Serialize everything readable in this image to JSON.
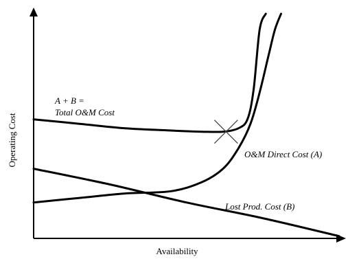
{
  "chart_data": {
    "type": "line",
    "title": "",
    "xlabel": "Availability",
    "ylabel": "Operating Cost",
    "xlim": [
      0,
      100
    ],
    "ylim": [
      0,
      100
    ],
    "grid": false,
    "legend": "none",
    "series": [
      {
        "label_lines": [
          "A + B =",
          "Total O&M Cost"
        ],
        "x": [
          0,
          15,
          30,
          45,
          55,
          62,
          67,
          70,
          72,
          74,
          76
        ],
        "y": [
          53,
          51,
          49,
          48,
          47.5,
          47.5,
          49,
          53,
          66,
          93,
          100
        ]
      },
      {
        "label_lines": [
          "O&M Direct Cost (A)"
        ],
        "x": [
          0,
          15,
          30,
          45,
          55,
          62,
          67,
          71,
          74,
          77,
          79,
          81
        ],
        "y": [
          16,
          18,
          20,
          21,
          25,
          31,
          40,
          51,
          65,
          82,
          93,
          100
        ]
      },
      {
        "label_lines": [
          "Lost Prod. Cost (B)"
        ],
        "x": [
          0,
          25,
          50,
          75,
          100
        ],
        "y": [
          31,
          24,
          16,
          9,
          1
        ]
      }
    ],
    "annotations": [
      {
        "type": "x-marker",
        "x": 63,
        "y": 47.5
      }
    ]
  }
}
